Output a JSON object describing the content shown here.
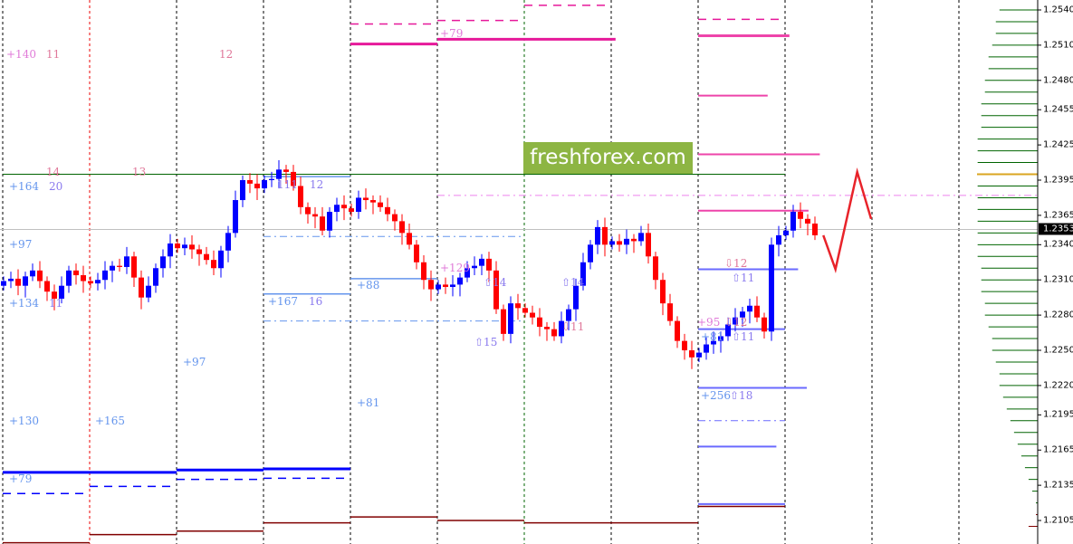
{
  "logo_text": "freshforex.com",
  "colors": {
    "bull": "#0000ff",
    "bear": "#ff0000",
    "doji": "#000000",
    "projection": "#e8232a",
    "volume": "#006400",
    "volume_max": "#daa520",
    "volume_low": "#800000",
    "current_price_line": "#c0c0c0"
  },
  "chart_data": {
    "type": "candlestick",
    "ylim": [
      1.2085,
      1.2548
    ],
    "y_ticks": [
      "1.2540",
      "1.2510",
      "1.2480",
      "1.2455",
      "1.2425",
      "1.2395",
      "1.2365",
      "1.2340",
      "1.2310",
      "1.2280",
      "1.2250",
      "1.2220",
      "1.2195",
      "1.2165",
      "1.2135",
      "1.2105"
    ],
    "current_price": "1.2353",
    "period_separators": [
      {
        "style": "black"
      },
      {
        "style": "red"
      },
      {
        "style": "black"
      },
      {
        "style": "black"
      },
      {
        "style": "black"
      },
      {
        "style": "black"
      },
      {
        "style": "green"
      },
      {
        "style": "black"
      },
      {
        "style": "black"
      },
      {
        "style": "black"
      },
      {
        "style": "black"
      },
      {
        "style": "black"
      }
    ],
    "bars_per_period": 12,
    "closes": [
      1.2309,
      1.2311,
      1.2305,
      1.2313,
      1.2318,
      1.2309,
      1.23,
      1.2294,
      1.2305,
      1.2318,
      1.2314,
      1.2309,
      1.2307,
      1.231,
      1.2318,
      1.2322,
      1.2321,
      1.233,
      1.2312,
      1.2295,
      1.2305,
      1.232,
      1.233,
      1.2341,
      1.2337,
      1.234,
      1.2336,
      1.2332,
      1.2327,
      1.232,
      1.2335,
      1.235,
      1.2378,
      1.2395,
      1.2392,
      1.2388,
      1.2395,
      1.2396,
      1.2404,
      1.2402,
      1.239,
      1.2372,
      1.2366,
      1.2364,
      1.2352,
      1.2368,
      1.2374,
      1.2371,
      1.2368,
      1.238,
      1.2378,
      1.2376,
      1.2372,
      1.2366,
      1.236,
      1.235,
      1.234,
      1.2325,
      1.231,
      1.2302,
      1.2306,
      1.2304,
      1.2306,
      1.2312,
      1.232,
      1.2322,
      1.2328,
      1.2318,
      1.2285,
      1.2264,
      1.229,
      1.2286,
      1.2282,
      1.2278,
      1.227,
      1.2268,
      1.2262,
      1.2275,
      1.2285,
      1.2305,
      1.2325,
      1.234,
      1.2355,
      1.234,
      1.2343,
      1.234,
      1.2345,
      1.2343,
      1.235,
      1.233,
      1.231,
      1.229,
      1.2275,
      1.2258,
      1.225,
      1.2244,
      1.2248,
      1.2255,
      1.2258,
      1.2262,
      1.2272,
      1.2278,
      1.2283,
      1.2288,
      1.2278,
      1.2266,
      1.234,
      1.2348,
      1.2352,
      1.2368,
      1.2362,
      1.2358,
      1.2348
    ],
    "projection": [
      [
        9.44,
        1.2348
      ],
      [
        9.58,
        1.2319
      ],
      [
        9.83,
        1.2402
      ],
      [
        9.99,
        1.2362
      ]
    ],
    "levels": [
      {
        "price": 1.24,
        "from": 0,
        "to": 9,
        "color": "#006400",
        "style": "solid",
        "weight": 1
      },
      {
        "price": 1.2382,
        "from": 5,
        "to": 11.9,
        "color": "#ee82ee",
        "style": "dashdot",
        "weight": 1
      },
      {
        "price": 1.2347,
        "from": 3,
        "to": 6,
        "color": "#6495ed",
        "style": "dashdot",
        "weight": 1
      },
      {
        "price": 1.2275,
        "from": 3,
        "to": 6,
        "color": "#6495ed",
        "style": "dashdot",
        "weight": 1
      },
      {
        "price": 1.2398,
        "from": 3,
        "to": 4,
        "color": "#6495ed",
        "style": "solid",
        "weight": 1.5
      },
      {
        "price": 1.2298,
        "from": 3,
        "to": 4,
        "color": "#6495ed",
        "style": "solid",
        "weight": 1.5
      },
      {
        "price": 1.2311,
        "from": 4,
        "to": 5,
        "color": "#6495ed",
        "style": "solid",
        "weight": 1.5
      },
      {
        "price": 1.2528,
        "from": 4,
        "to": 5,
        "color": "#e6199a",
        "style": "dash",
        "weight": 1.5
      },
      {
        "price": 1.2531,
        "from": 5,
        "to": 6,
        "color": "#e6199a",
        "style": "dash",
        "weight": 1.5
      },
      {
        "price": 1.2544,
        "from": 6,
        "to": 7,
        "color": "#e6199a",
        "style": "dash",
        "weight": 1.5
      },
      {
        "price": 1.2532,
        "from": 8,
        "to": 9,
        "color": "#e6199a",
        "style": "dash",
        "weight": 1.5
      },
      {
        "price": 1.2511,
        "from": 4,
        "to": 5,
        "color": "#e6199a",
        "style": "solid",
        "weight": 3
      },
      {
        "price": 1.2515,
        "from": 5,
        "to": 6,
        "color": "#e6199a",
        "style": "solid",
        "weight": 3
      },
      {
        "price": 1.2515,
        "from": 6,
        "to": 7.05,
        "color": "#e6199a",
        "style": "solid",
        "weight": 3
      },
      {
        "price": 1.2518,
        "from": 8,
        "to": 9.05,
        "color": "#ee44aa",
        "style": "solid",
        "weight": 3
      },
      {
        "price": 1.2467,
        "from": 8,
        "to": 8.8,
        "color": "#ee44aa",
        "style": "solid",
        "weight": 2
      },
      {
        "price": 1.2417,
        "from": 8,
        "to": 9.4,
        "color": "#ee44aa",
        "style": "solid",
        "weight": 2
      },
      {
        "price": 1.2369,
        "from": 8,
        "to": 9.27,
        "color": "#ee44aa",
        "style": "solid",
        "weight": 2
      },
      {
        "price": 1.2319,
        "from": 8,
        "to": 9.15,
        "color": "#6a6aff",
        "style": "solid",
        "weight": 2
      },
      {
        "price": 1.2268,
        "from": 8,
        "to": 9,
        "color": "#6a6aff",
        "style": "solid",
        "weight": 2
      },
      {
        "price": 1.2218,
        "from": 8,
        "to": 9.25,
        "color": "#6a6aff",
        "style": "solid",
        "weight": 2
      },
      {
        "price": 1.219,
        "from": 8,
        "to": 9,
        "color": "#6a6aff",
        "style": "dashdot",
        "weight": 1
      },
      {
        "price": 1.2168,
        "from": 8,
        "to": 8.9,
        "color": "#6a6aff",
        "style": "solid",
        "weight": 2
      },
      {
        "price": 1.2119,
        "from": 8,
        "to": 9,
        "color": "#6a6aff",
        "style": "solid",
        "weight": 2
      },
      {
        "price": 1.2146,
        "from": 0,
        "to": 1,
        "color": "#0000ff",
        "style": "solid",
        "weight": 3
      },
      {
        "price": 1.2146,
        "from": 1,
        "to": 2,
        "color": "#0000ff",
        "style": "solid",
        "weight": 3
      },
      {
        "price": 1.2148,
        "from": 2,
        "to": 3,
        "color": "#0000ff",
        "style": "solid",
        "weight": 3
      },
      {
        "price": 1.2149,
        "from": 3,
        "to": 4,
        "color": "#0000ff",
        "style": "solid",
        "weight": 3
      },
      {
        "price": 1.2128,
        "from": 0,
        "to": 1,
        "color": "#0000ff",
        "style": "dash",
        "weight": 1.5
      },
      {
        "price": 1.2134,
        "from": 1,
        "to": 2,
        "color": "#0000ff",
        "style": "dash",
        "weight": 1.5
      },
      {
        "price": 1.214,
        "from": 2,
        "to": 3,
        "color": "#0000ff",
        "style": "dash",
        "weight": 1.5
      },
      {
        "price": 1.2141,
        "from": 3,
        "to": 4,
        "color": "#0000ff",
        "style": "dash",
        "weight": 1.5
      },
      {
        "price": 1.2086,
        "from": 0,
        "to": 1,
        "color": "#800000",
        "style": "solid",
        "weight": 1.5
      },
      {
        "price": 1.2093,
        "from": 1,
        "to": 2,
        "color": "#800000",
        "style": "solid",
        "weight": 1.5
      },
      {
        "price": 1.2096,
        "from": 2,
        "to": 3,
        "color": "#800000",
        "style": "solid",
        "weight": 1.5
      },
      {
        "price": 1.2103,
        "from": 3,
        "to": 4,
        "color": "#800000",
        "style": "solid",
        "weight": 1.5
      },
      {
        "price": 1.2108,
        "from": 4,
        "to": 5,
        "color": "#800000",
        "style": "solid",
        "weight": 1.5
      },
      {
        "price": 1.2105,
        "from": 5,
        "to": 6,
        "color": "#800000",
        "style": "solid",
        "weight": 1.5
      },
      {
        "price": 1.2103,
        "from": 6,
        "to": 8,
        "color": "#800000",
        "style": "solid",
        "weight": 1.5
      },
      {
        "price": 1.2117,
        "from": 8,
        "to": 9,
        "color": "#800000",
        "style": "solid",
        "weight": 1.5
      }
    ],
    "volume_profile": {
      "top_price": 1.254,
      "step": 0.001,
      "values": [
        63,
        69,
        69,
        75,
        81,
        81,
        87,
        87,
        93,
        93,
        93,
        99,
        99,
        99,
        100,
        99,
        99,
        99,
        99,
        99,
        99,
        99,
        93,
        93,
        93,
        87,
        87,
        81,
        75,
        75,
        69,
        63,
        63,
        57,
        51,
        45,
        39,
        33,
        27,
        21,
        15,
        9,
        3,
        3,
        15
      ],
      "max_level": 1.24
    },
    "annotations": [
      {
        "text": "+140",
        "color": "#e07ad8"
      },
      {
        "text": "11",
        "color": "#e0789a"
      },
      {
        "text": "12",
        "color": "#e0789a"
      },
      {
        "text": "14",
        "color": "#e0789a"
      },
      {
        "text": "13",
        "color": "#e0789a"
      },
      {
        "text": "+164",
        "color": "#6495ed"
      },
      {
        "text": "20",
        "color": "#8a7aee"
      },
      {
        "text": "111",
        "color": "#8a7aee"
      },
      {
        "text": "12",
        "color": "#8a7aee"
      },
      {
        "text": "+97",
        "color": "#6495ed"
      },
      {
        "text": "+134",
        "color": "#6495ed"
      },
      {
        "text": "11",
        "color": "#8a7aee"
      },
      {
        "text": "+167",
        "color": "#6495ed"
      },
      {
        "text": "16",
        "color": "#8a7aee"
      },
      {
        "text": "+88",
        "color": "#6495ed"
      },
      {
        "text": "+79",
        "color": "#e07ad8"
      },
      {
        "text": "+129",
        "color": "#e07ad8"
      },
      {
        "text": "⇧14",
        "color": "#8a7aee"
      },
      {
        "text": "⇧15",
        "color": "#8a7aee"
      },
      {
        "text": "⇧14",
        "color": "#8a7aee"
      },
      {
        "text": "⇩11",
        "color": "#e0789a"
      },
      {
        "text": "⇩12",
        "color": "#e0789a"
      },
      {
        "text": "⇧11",
        "color": "#8a7aee"
      },
      {
        "text": "+95",
        "color": "#e07ad8"
      },
      {
        "text": "⇩12",
        "color": "#e0789a"
      },
      {
        "text": "+81",
        "color": "#6495ed"
      },
      {
        "text": "⇧11",
        "color": "#8a7aee"
      },
      {
        "text": "+256",
        "color": "#6495ed"
      },
      {
        "text": "⇧18",
        "color": "#8a7aee"
      },
      {
        "text": "+97",
        "color": "#6495ed"
      },
      {
        "text": "+81",
        "color": "#6495ed"
      },
      {
        "text": "+130",
        "color": "#6495ed"
      },
      {
        "text": "+165",
        "color": "#6495ed"
      },
      {
        "text": "+79",
        "color": "#6495ed"
      }
    ]
  }
}
